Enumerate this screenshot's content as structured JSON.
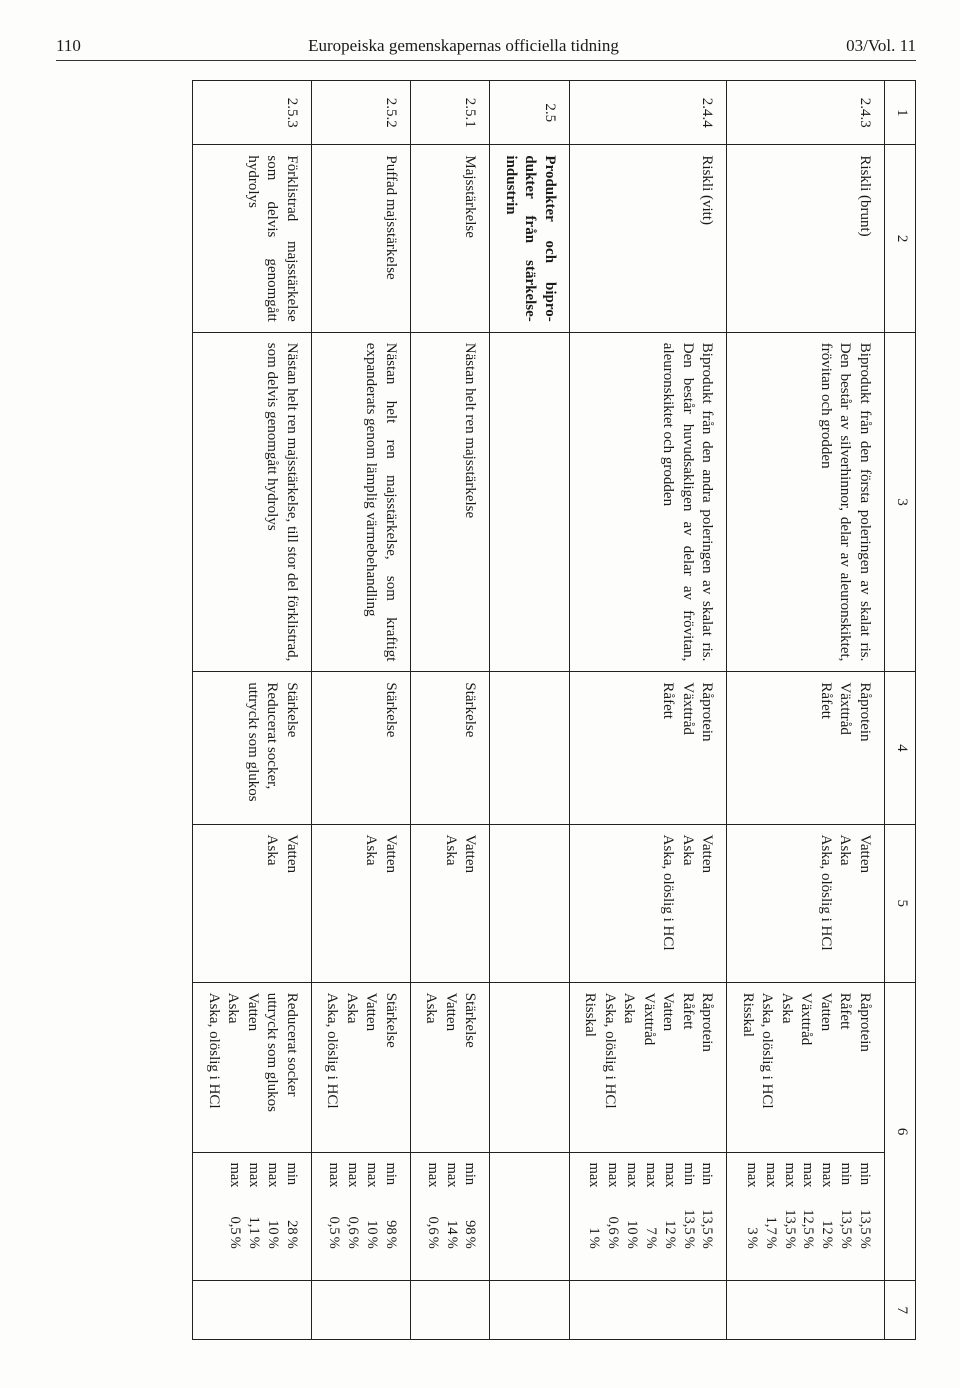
{
  "page_number_left": "110",
  "header_center": "Europeiska gemenskapernas officiella tidning",
  "header_right": "03/Vol. 11",
  "col_heads": [
    "1",
    "2",
    "3",
    "4",
    "5",
    "6",
    "7"
  ],
  "rows": [
    {
      "id": "2.4.3",
      "name": "Riskli (brunt)",
      "desc": "Biprodukt från den första poleringen av skalat ris. Den består av silverhinnor, delar av aleuronskiktet, frövitan och grodden",
      "col4": "Råprotein\nVäxttråd\nRåfett",
      "col5": "Vatten\nAska\nAska, olöslig i HCl",
      "col6_label": "Råprotein\nRåfett\nVatten\nVäxttråd\nAska\nAska, olöslig i HCl\nRisskal",
      "col6_vals": [
        [
          "min",
          "13,5",
          "%"
        ],
        [
          "min",
          "13,5",
          "%"
        ],
        [
          "max",
          "12",
          "%"
        ],
        [
          "max",
          "12,5",
          "%"
        ],
        [
          "max",
          "13,5",
          "%"
        ],
        [
          "max",
          "1,7",
          "%"
        ],
        [
          "max",
          "3",
          "%"
        ]
      ]
    },
    {
      "id": "2.4.4",
      "name": "Riskli (vitt)",
      "desc": "Biprodukt från den andra poleringen av skalat ris. Den består huvudsakligen av delar av frövitan, aleuronskiktet och grodden",
      "col4": "Råprotein\nVäxttråd\nRåfett",
      "col5": "Vatten\nAska\nAska, olöslig i HCl",
      "col6_label": "Råprotein\nRåfett\nVatten\nVäxttråd\nAska\nAska, olöslig i HCl\nRisskal",
      "col6_vals": [
        [
          "min",
          "13,5",
          "%"
        ],
        [
          "min",
          "13,5",
          "%"
        ],
        [
          "max",
          "12",
          "%"
        ],
        [
          "max",
          "7",
          "%"
        ],
        [
          "max",
          "10",
          "%"
        ],
        [
          "max",
          "0,6",
          "%"
        ],
        [
          "max",
          "1",
          "%"
        ]
      ]
    },
    {
      "sect_id": "2.5",
      "sect_name": "Produkter och bipro­dukter från stärkelse­industrin",
      "id": "2.5.1",
      "name": "Majsstärkelse",
      "desc": "Nästan helt ren majsstärkelse",
      "col4": "Stärkelse",
      "col5": "Vatten\nAska",
      "col6_label": "Stärkelse\nVatten\nAska",
      "col6_vals": [
        [
          "min",
          "98",
          "%"
        ],
        [
          "max",
          "14",
          "%"
        ],
        [
          "max",
          "0,6",
          "%"
        ]
      ]
    },
    {
      "id": "2.5.2",
      "name": "Puffad majsstärkelse",
      "desc": "Nästan helt ren majsstärkelse, som kraftigt expanderats genom lämplig värmebehandling",
      "col4": "Stärkelse",
      "col5": "Vatten\nAska",
      "col6_label": "Stärkelse\nVatten\nAska\nAska, olöslig i HCl",
      "col6_vals": [
        [
          "min",
          "98",
          "%"
        ],
        [
          "max",
          "10",
          "%"
        ],
        [
          "max",
          "0,6",
          "%"
        ],
        [
          "max",
          "0,5",
          "%"
        ]
      ]
    },
    {
      "id": "2.5.3",
      "name": "Förklistrad majsstär­kelse som delvis ge­nomgått hydrolys",
      "desc": "Nästan helt ren majsstärkelse, till stor del förklistrad, som delvis genomgått hydrolys",
      "col4": "Stärkelse\nReducerat socker, uttryckt som glukos",
      "col5": "Vatten\nAska",
      "col6_label": "Reducerat socker uttryckt som glukos\nVatten\nAska\nAska, olöslig i HCl",
      "col6_vals": [
        [
          "min",
          "28",
          "%"
        ],
        [
          "max",
          "10",
          "%"
        ],
        [
          "max",
          "1,1",
          "%"
        ],
        [
          "max",
          "0,5",
          "%"
        ]
      ]
    }
  ]
}
